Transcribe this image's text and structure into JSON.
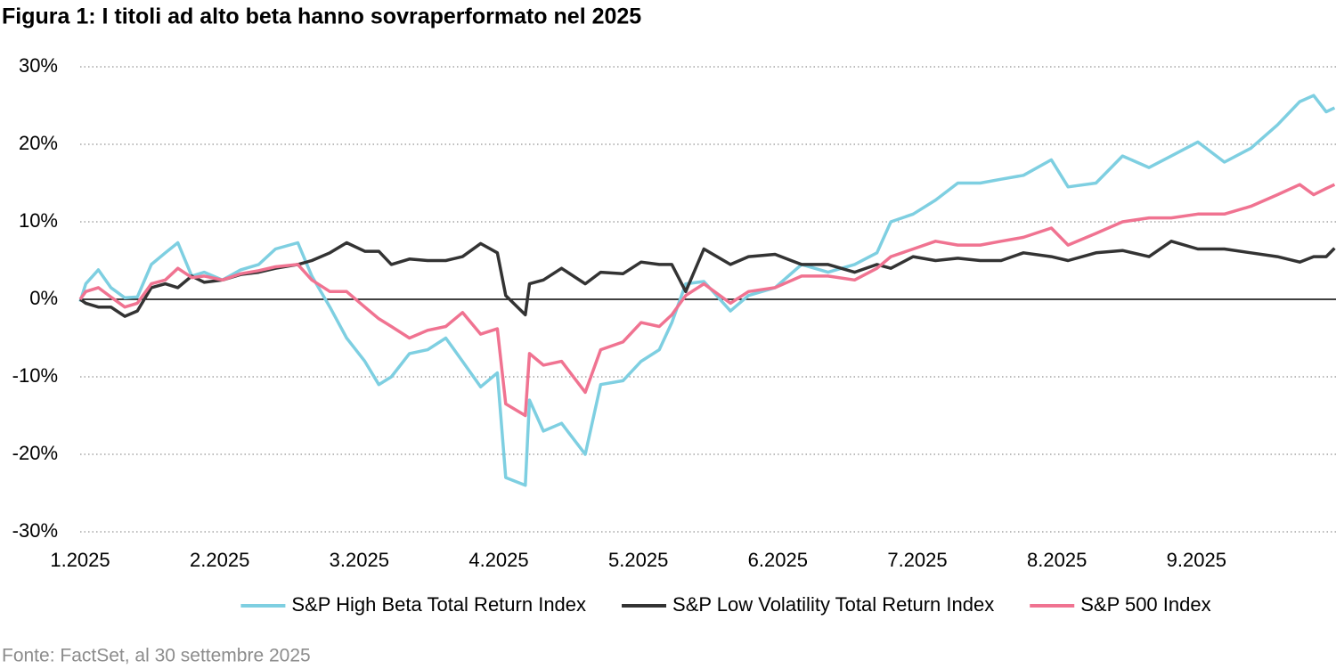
{
  "chart_data": {
    "type": "line",
    "title": "Figura 1: I titoli ad alto beta hanno sovraperformato nel 2025",
    "source": "Fonte: FactSet, al 30 settembre 2025",
    "x": [
      0,
      0.04,
      0.13,
      0.22,
      0.32,
      0.41,
      0.51,
      0.61,
      0.7,
      0.8,
      0.89,
      1.02,
      1.15,
      1.28,
      1.4,
      1.56,
      1.66,
      1.79,
      1.91,
      2.04,
      2.14,
      2.23,
      2.36,
      2.49,
      2.62,
      2.74,
      2.87,
      2.99,
      3.05,
      3.19,
      3.22,
      3.32,
      3.45,
      3.62,
      3.73,
      3.89,
      4.02,
      4.15,
      4.24,
      4.34,
      4.47,
      4.66,
      4.79,
      4.98,
      5.17,
      5.36,
      5.55,
      5.71,
      5.81,
      5.97,
      6.13,
      6.29,
      6.45,
      6.6,
      6.76,
      6.96,
      7.08,
      7.28,
      7.47,
      7.66,
      7.82,
      8.01,
      8.2,
      8.39,
      8.58,
      8.74,
      8.84,
      8.93,
      8.99
    ],
    "series": [
      {
        "name": "S&P High Beta Total Return Index",
        "color": "#7ecfe1",
        "values": [
          -0.3,
          2,
          3.8,
          1.5,
          0.2,
          0.3,
          4.5,
          6,
          7.3,
          3,
          3.5,
          2.5,
          3.8,
          4.5,
          6.5,
          7.3,
          3,
          -1,
          -5,
          -8,
          -11,
          -10,
          -7,
          -6.5,
          -5,
          -8,
          -11.3,
          -9.5,
          -23,
          -24,
          -13,
          -17,
          -16,
          -20,
          -11,
          -10.5,
          -8,
          -6.5,
          -3,
          2,
          2.3,
          -1.5,
          0.5,
          1.5,
          4.5,
          3.5,
          4.5,
          6,
          10,
          11,
          12.8,
          15,
          15,
          15.5,
          16,
          18,
          14.5,
          15,
          18.5,
          17,
          18.5,
          20.3,
          17.7,
          19.5,
          22.5,
          25.5,
          26.3,
          24.2,
          24.7
        ]
      },
      {
        "name": "S&P Low Volatility Total Return Index",
        "color": "#333333",
        "values": [
          0,
          -0.5,
          -1,
          -1,
          -2.2,
          -1.5,
          1.5,
          2,
          1.5,
          3,
          2.2,
          2.5,
          3.2,
          3.5,
          4,
          4.5,
          5,
          6,
          7.3,
          6.2,
          6.2,
          4.5,
          5.2,
          5,
          5,
          5.5,
          7.2,
          6,
          0.5,
          -2,
          2,
          2.5,
          4,
          2,
          3.5,
          3.3,
          4.8,
          4.5,
          4.5,
          1,
          6.5,
          4.5,
          5.5,
          5.8,
          4.5,
          4.5,
          3.5,
          4.5,
          4,
          5.5,
          5,
          5.3,
          5,
          5,
          6,
          5.5,
          5,
          6,
          6.3,
          5.5,
          7.5,
          6.5,
          6.5,
          6,
          5.5,
          4.8,
          5.5,
          5.5,
          6.6
        ]
      },
      {
        "name": "S&P 500 Index",
        "color": "#f07391",
        "values": [
          0,
          1,
          1.5,
          0.3,
          -1,
          -0.5,
          2,
          2.5,
          4,
          2.8,
          3,
          2.5,
          3.3,
          3.7,
          4.2,
          4.5,
          2.5,
          1,
          1,
          -1,
          -2.5,
          -3.5,
          -5,
          -4,
          -3.5,
          -1.7,
          -4.5,
          -3.8,
          -13.5,
          -15,
          -7,
          -8.5,
          -8,
          -12,
          -6.5,
          -5.5,
          -3,
          -3.5,
          -2,
          0.5,
          2,
          -0.5,
          1,
          1.5,
          3,
          3,
          2.5,
          4,
          5.5,
          6.5,
          7.5,
          7,
          7,
          7.5,
          8,
          9.2,
          7,
          8.5,
          10,
          10.5,
          10.5,
          11,
          11,
          12,
          13.5,
          14.8,
          13.5,
          14.3,
          14.8
        ]
      }
    ],
    "xlim": [
      0,
      9
    ],
    "xticks": [
      {
        "value": 0,
        "label": "1.2025"
      },
      {
        "value": 1,
        "label": "2.2025"
      },
      {
        "value": 2,
        "label": "3.2025"
      },
      {
        "value": 3,
        "label": "4.2025"
      },
      {
        "value": 4,
        "label": "5.2025"
      },
      {
        "value": 5,
        "label": "6.2025"
      },
      {
        "value": 6,
        "label": "7.2025"
      },
      {
        "value": 7,
        "label": "8.2025"
      },
      {
        "value": 8,
        "label": "9.2025"
      }
    ],
    "ylim": [
      -30,
      30
    ],
    "yticks": [
      {
        "value": -30,
        "label": "-30%"
      },
      {
        "value": -20,
        "label": "-20%"
      },
      {
        "value": -10,
        "label": "-10%"
      },
      {
        "value": 0,
        "label": "0%"
      },
      {
        "value": 10,
        "label": "10%"
      },
      {
        "value": 20,
        "label": "20%"
      },
      {
        "value": 30,
        "label": "30%"
      }
    ],
    "grid": true,
    "legend": "bottom"
  }
}
